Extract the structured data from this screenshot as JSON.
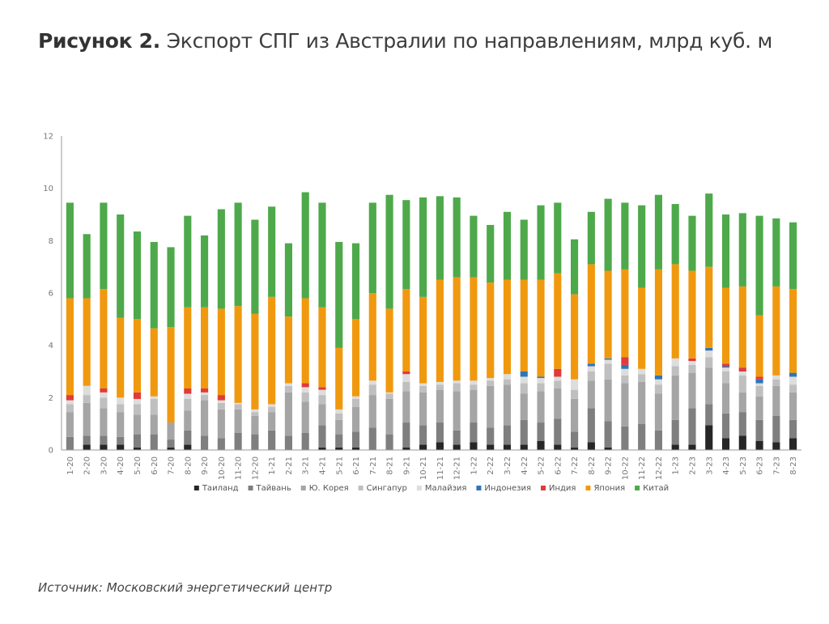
{
  "header": {
    "figure_number": "Рисунок 2.",
    "title": "Экспорт СПГ из Австралии по направлениям, млрд куб. м"
  },
  "footer": {
    "source_label": "Источник:",
    "source_text": "Московский энергетический центр"
  },
  "chart_data": {
    "type": "bar",
    "stacked": true,
    "ylim": [
      0,
      12
    ],
    "yticks": [
      0,
      2,
      4,
      6,
      8,
      10,
      12
    ],
    "grid": false,
    "legend_position": "bottom",
    "categories": [
      "1-20",
      "2-20",
      "3-20",
      "4-20",
      "5-20",
      "6-20",
      "7-20",
      "8-20",
      "9-20",
      "10-20",
      "11-20",
      "12-20",
      "1-21",
      "2-21",
      "3-21",
      "4-21",
      "5-21",
      "6-21",
      "7-21",
      "8-21",
      "9-21",
      "10-21",
      "11-21",
      "12-21",
      "1-22",
      "2-22",
      "3-22",
      "4-22",
      "5-22",
      "6-22",
      "7-22",
      "8-22",
      "9-22",
      "10-22",
      "11-22",
      "12-22",
      "1-23",
      "2-23",
      "3-23",
      "4-23",
      "5-23",
      "6-23",
      "7-23",
      "8-23"
    ],
    "series": [
      {
        "name": "Таиланд",
        "color": "#262626",
        "values": [
          0,
          0.2,
          0.2,
          0.2,
          0.1,
          0,
          0.1,
          0.2,
          0,
          0,
          0,
          0,
          0,
          0,
          0,
          0.1,
          0.1,
          0.1,
          0,
          0,
          0.1,
          0.2,
          0.3,
          0.2,
          0.3,
          0.2,
          0.2,
          0.2,
          0.35,
          0.2,
          0.1,
          0.3,
          0.1,
          0,
          0,
          0,
          0.2,
          0.2,
          0.95,
          0.45,
          0.55,
          0.35,
          0.3,
          0.45
        ]
      },
      {
        "name": "Тайвань",
        "color": "#7f7f7f",
        "values": [
          0.5,
          0.35,
          0.35,
          0.3,
          0.5,
          0.6,
          0.3,
          0.55,
          0.55,
          0.45,
          0.65,
          0.6,
          0.75,
          0.55,
          0.65,
          0.85,
          0.5,
          0.6,
          0.85,
          0.6,
          0.95,
          0.75,
          0.75,
          0.55,
          0.75,
          0.65,
          0.75,
          0.95,
          0.7,
          1.0,
          0.6,
          1.3,
          1.0,
          0.9,
          1.0,
          0.75,
          0.95,
          1.4,
          0.8,
          0.95,
          0.9,
          0.8,
          1.0,
          0.7
        ]
      },
      {
        "name": "Ю. Корея",
        "color": "#a5a5a5",
        "values": [
          0.95,
          1.25,
          1.05,
          0.95,
          0.75,
          0.75,
          0.65,
          0.75,
          1.35,
          1.1,
          0.9,
          0.7,
          0.7,
          1.65,
          1.2,
          0.8,
          0.55,
          0.95,
          1.25,
          1.35,
          1.2,
          1.25,
          1.25,
          1.5,
          1.25,
          1.6,
          1.55,
          1.0,
          1.2,
          1.15,
          1.25,
          1.05,
          1.6,
          1.65,
          1.6,
          1.4,
          1.7,
          1.35,
          1.4,
          1.15,
          0.75,
          0.9,
          1.15,
          1.05
        ]
      },
      {
        "name": "Сингапур",
        "color": "#bfbfbf",
        "values": [
          0.3,
          0.3,
          0.4,
          0.3,
          0.4,
          0.6,
          0,
          0.45,
          0.2,
          0.25,
          0.2,
          0.15,
          0.2,
          0.25,
          0.35,
          0.35,
          0.25,
          0.3,
          0.4,
          0.2,
          0.35,
          0.25,
          0.2,
          0.3,
          0.2,
          0.2,
          0.2,
          0.4,
          0.3,
          0.3,
          0.35,
          0.35,
          0.6,
          0.3,
          0.3,
          0.35,
          0.35,
          0.3,
          0.4,
          0.45,
          0.65,
          0.4,
          0.25,
          0.3
        ]
      },
      {
        "name": "Малайзия",
        "color": "#dddddd",
        "values": [
          0.15,
          0.35,
          0.2,
          0.25,
          0.2,
          0.1,
          0,
          0.2,
          0.1,
          0.1,
          0.05,
          0.1,
          0.1,
          0.1,
          0.2,
          0.2,
          0.15,
          0.1,
          0.15,
          0.05,
          0.3,
          0.1,
          0.1,
          0.1,
          0.15,
          0.1,
          0.2,
          0.25,
          0.2,
          0.15,
          0.4,
          0.2,
          0.15,
          0.25,
          0.2,
          0.2,
          0.3,
          0.15,
          0.25,
          0.15,
          0.15,
          0.1,
          0.15,
          0.3
        ]
      },
      {
        "name": "Индонезия",
        "color": "#2e75b6",
        "values": [
          0,
          0,
          0,
          0,
          0,
          0,
          0,
          0,
          0,
          0,
          0,
          0,
          0,
          0,
          0,
          0,
          0,
          0,
          0,
          0,
          0,
          0,
          0,
          0,
          0,
          0,
          0,
          0.2,
          0.05,
          0,
          0,
          0.1,
          0.05,
          0.15,
          0,
          0.15,
          0,
          0,
          0.1,
          0.05,
          0,
          0.15,
          0,
          0.15
        ]
      },
      {
        "name": "Индия",
        "color": "#e03b3b",
        "values": [
          0.2,
          0,
          0.15,
          0,
          0.25,
          0,
          0,
          0.2,
          0.15,
          0.2,
          0,
          0,
          0,
          0,
          0.15,
          0.1,
          0,
          0,
          0,
          0,
          0.1,
          0,
          0,
          0,
          0,
          0,
          0,
          0,
          0,
          0.3,
          0,
          0,
          0,
          0.3,
          0,
          0,
          0,
          0.1,
          0,
          0.1,
          0.15,
          0.1,
          0,
          0
        ]
      },
      {
        "name": "Япония",
        "color": "#f0990f",
        "values": [
          3.7,
          3.35,
          3.8,
          3.05,
          2.8,
          2.6,
          3.65,
          3.1,
          3.1,
          3.3,
          3.7,
          3.65,
          4.1,
          2.55,
          3.25,
          3.05,
          2.35,
          2.95,
          3.35,
          3.2,
          3.15,
          3.3,
          3.9,
          3.95,
          3.95,
          3.65,
          3.6,
          3.5,
          3.7,
          3.65,
          3.25,
          3.8,
          3.35,
          3.35,
          3.1,
          4.05,
          3.6,
          3.35,
          3.1,
          2.9,
          3.1,
          2.35,
          3.4,
          3.2
        ]
      },
      {
        "name": "Китай",
        "color": "#4ea94b",
        "values": [
          3.65,
          2.45,
          3.3,
          3.95,
          3.35,
          3.3,
          3.05,
          3.5,
          2.75,
          3.8,
          3.95,
          3.6,
          3.45,
          2.8,
          4.05,
          4.0,
          4.05,
          2.9,
          3.45,
          4.35,
          3.4,
          3.8,
          3.2,
          3.05,
          2.35,
          2.2,
          2.6,
          2.3,
          2.85,
          2.7,
          2.1,
          2.0,
          2.75,
          2.55,
          3.15,
          2.85,
          2.3,
          2.1,
          2.8,
          2.8,
          2.8,
          3.8,
          2.6,
          2.55
        ]
      }
    ]
  }
}
